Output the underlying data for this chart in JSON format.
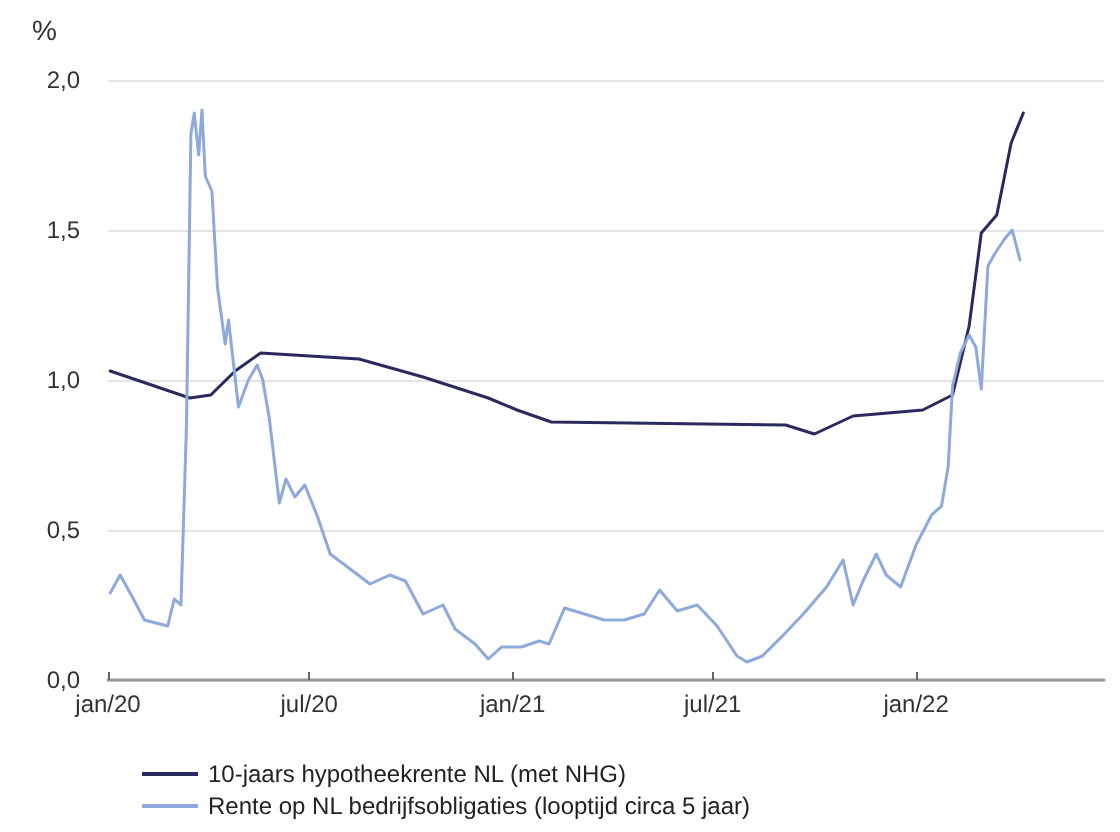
{
  "chart_data": {
    "type": "line",
    "ylabel": "%",
    "xlim": [
      "2020-01-01",
      "2022-06-20"
    ],
    "xticks": [
      {
        "value": "2020-01-01",
        "label": "jan/20"
      },
      {
        "value": "2020-07-01",
        "label": "jul/20"
      },
      {
        "value": "2021-01-01",
        "label": "jan/21"
      },
      {
        "value": "2021-07-01",
        "label": "jul/21"
      },
      {
        "value": "2022-01-01",
        "label": "jan/22"
      }
    ],
    "ylim": [
      0,
      2.0
    ],
    "yticks": [
      {
        "value": 0,
        "label": "0,0"
      },
      {
        "value": 0.5,
        "label": "0,5"
      },
      {
        "value": 1.0,
        "label": "1,0"
      },
      {
        "value": 1.5,
        "label": "1,5"
      },
      {
        "value": 2.0,
        "label": "2,0"
      }
    ],
    "grid": "y",
    "legend": "bottom",
    "marker": "none",
    "line_style": "solid",
    "series": [
      {
        "name": "10-jaars hypotheekrente NL (met NHG)",
        "color": "#2b2a5e",
        "x": [
          "2020-01-03",
          "2020-03-15",
          "2020-04-03",
          "2020-04-25",
          "2020-05-18",
          "2020-08-15",
          "2020-10-12",
          "2020-12-10",
          "2021-01-05",
          "2021-02-05",
          "2021-09-05",
          "2021-10-01",
          "2021-11-05",
          "2022-01-07",
          "2022-02-03",
          "2022-02-18",
          "2022-03-01",
          "2022-03-15",
          "2022-03-28",
          "2022-04-08"
        ],
        "values": [
          1.03,
          0.94,
          0.95,
          1.03,
          1.09,
          1.07,
          1.01,
          0.94,
          0.9,
          0.86,
          0.85,
          0.82,
          0.88,
          0.9,
          0.95,
          1.18,
          1.49,
          1.55,
          1.79,
          1.89
        ]
      },
      {
        "name": "Rente op NL bedrijfsobligaties (looptijd circa 5 jaar)",
        "color": "#8ea9db",
        "x": [
          "2020-01-03",
          "2020-01-12",
          "2020-01-24",
          "2020-02-03",
          "2020-02-24",
          "2020-03-01",
          "2020-03-07",
          "2020-03-12",
          "2020-03-16",
          "2020-03-19",
          "2020-03-23",
          "2020-03-26",
          "2020-03-29",
          "2020-04-04",
          "2020-04-09",
          "2020-04-16",
          "2020-04-19",
          "2020-04-28",
          "2020-05-07",
          "2020-05-15",
          "2020-05-20",
          "2020-05-26",
          "2020-06-04",
          "2020-06-10",
          "2020-06-18",
          "2020-06-27",
          "2020-07-08",
          "2020-07-20",
          "2020-08-07",
          "2020-08-25",
          "2020-09-12",
          "2020-09-26",
          "2020-10-12",
          "2020-10-30",
          "2020-11-10",
          "2020-11-28",
          "2020-12-10",
          "2020-12-22",
          "2021-01-09",
          "2021-01-25",
          "2021-02-03",
          "2021-02-17",
          "2021-03-07",
          "2021-03-25",
          "2021-04-12",
          "2021-04-30",
          "2021-05-14",
          "2021-05-30",
          "2021-06-17",
          "2021-07-05",
          "2021-07-23",
          "2021-08-01",
          "2021-08-15",
          "2021-09-03",
          "2021-09-21",
          "2021-10-12",
          "2021-10-27",
          "2021-11-05",
          "2021-11-14",
          "2021-11-26",
          "2021-12-05",
          "2021-12-18",
          "2022-01-01",
          "2022-01-15",
          "2022-01-24",
          "2022-01-30",
          "2022-02-03",
          "2022-02-10",
          "2022-02-18",
          "2022-02-24",
          "2022-03-01",
          "2022-03-07",
          "2022-03-13",
          "2022-03-22",
          "2022-03-29",
          "2022-04-05"
        ],
        "values": [
          0.29,
          0.35,
          0.27,
          0.2,
          0.18,
          0.27,
          0.25,
          0.85,
          1.82,
          1.89,
          1.75,
          1.9,
          1.68,
          1.63,
          1.31,
          1.12,
          1.2,
          0.91,
          1.0,
          1.05,
          1.0,
          0.87,
          0.59,
          0.67,
          0.61,
          0.65,
          0.55,
          0.42,
          0.37,
          0.32,
          0.35,
          0.33,
          0.22,
          0.25,
          0.17,
          0.12,
          0.07,
          0.11,
          0.11,
          0.13,
          0.12,
          0.24,
          0.22,
          0.2,
          0.2,
          0.22,
          0.3,
          0.23,
          0.25,
          0.18,
          0.08,
          0.06,
          0.08,
          0.15,
          0.22,
          0.31,
          0.4,
          0.25,
          0.33,
          0.42,
          0.35,
          0.31,
          0.45,
          0.55,
          0.58,
          0.71,
          0.98,
          1.09,
          1.15,
          1.11,
          0.97,
          1.38,
          1.42,
          1.47,
          1.5,
          1.4
        ]
      }
    ]
  }
}
